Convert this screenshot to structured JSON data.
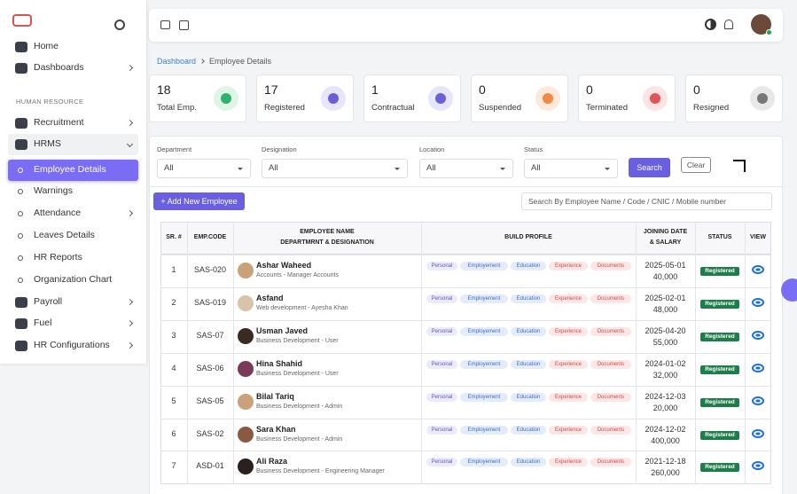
{
  "sidebar": {
    "items": [
      "Home",
      "Dashboards"
    ],
    "section": "HUMAN RESOURCE",
    "hr_items": [
      "Recruitment",
      "HRMS"
    ],
    "hrms_sub": [
      "Employee Details",
      "Warnings",
      "Attendance",
      "Leaves Details",
      "HR Reports",
      "Organization Chart"
    ],
    "more_items": [
      "Payroll",
      "Fuel",
      "HR Configurations"
    ]
  },
  "breadcrumb": [
    "Dashboard",
    "Employee Details"
  ],
  "stats": [
    {
      "value": 18,
      "label": "Total Emp."
    },
    {
      "value": 17,
      "label": "Registered"
    },
    {
      "value": 1,
      "label": "Contractual"
    },
    {
      "value": 0,
      "label": "Suspended"
    },
    {
      "value": 0,
      "label": "Terminated"
    },
    {
      "value": 0,
      "label": "Resigned"
    }
  ],
  "filters": [
    {
      "label": "Department",
      "value": "All"
    },
    {
      "label": "Designation",
      "value": "All"
    },
    {
      "label": "Location",
      "value": "All"
    },
    {
      "label": "Status",
      "value": "All"
    }
  ],
  "buttons": {
    "search": "Search",
    "clear": "Clear",
    "add": "+ Add New Employee"
  },
  "search_placeholder": "Search By Employee Name / Code / CNIC / Mobile number",
  "table": {
    "headers": [
      "SR. #",
      "EMP.CODE",
      [
        "EMPLOYEE NAME",
        "DEPARTMRNT & DESIGNATION"
      ],
      "BUILD PROFILE",
      [
        "JOINING DATE",
        "& SALARY"
      ],
      "STATUS",
      "VIEW"
    ],
    "profile_tags": [
      "Personal",
      "Employement",
      "Education",
      "Experience",
      "Documents"
    ],
    "rows": [
      [
        "1",
        "SAS-020",
        "Ashar Waheed",
        "Accounts - Manager Accounts",
        "2025-05-01",
        "40,000",
        "Registered"
      ],
      [
        "2",
        "SAS-019",
        "Asfand",
        "Web development - Ayesha Khan",
        "2025-02-01",
        "48,000",
        "Registered"
      ],
      [
        "3",
        "SAS-07",
        "Usman Javed",
        "Business Development - User",
        "2025-04-20",
        "55,000",
        "Registered"
      ],
      [
        "4",
        "SAS-06",
        "Hina Shahid",
        "Business Development - User",
        "2024-01-02",
        "32,000",
        "Registered"
      ],
      [
        "5",
        "SAS-05",
        "Bilal Tariq",
        "Business Development - Admin",
        "2024-12-03",
        "20,000",
        "Registered"
      ],
      [
        "6",
        "SAS-02",
        "Sara Khan",
        "Business Development - Admin",
        "2024-12-02",
        "400,000",
        "Registered"
      ],
      [
        "7",
        "ASD-01",
        "Ali Raza",
        "Business Development - Engineering Manager",
        "2021-12-18",
        "260,000",
        "Registered"
      ]
    ]
  }
}
